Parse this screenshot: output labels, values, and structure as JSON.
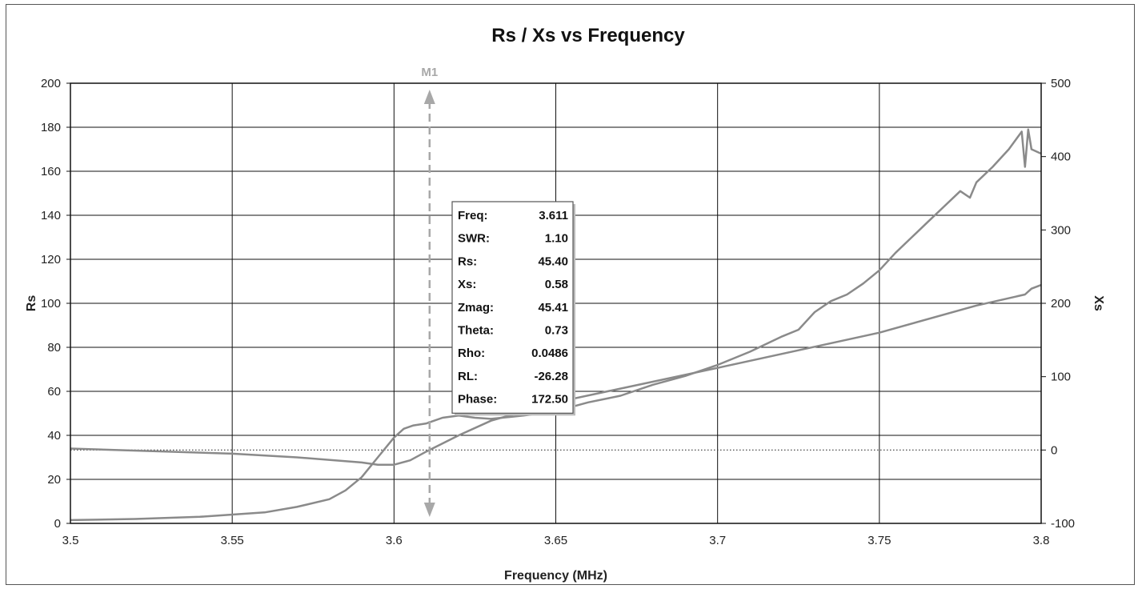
{
  "chart_data": {
    "type": "line",
    "title": "Rs / Xs  vs  Frequency",
    "xlabel": "Frequency (MHz)",
    "ylabel_left": "Rs",
    "ylabel_right": "Xs",
    "xlim": [
      3.5,
      3.8
    ],
    "ylim_left": [
      0,
      200
    ],
    "ylim_right": [
      -100,
      500
    ],
    "x_ticks": [
      "3.5",
      "3.55",
      "3.6",
      "3.65",
      "3.7",
      "3.75",
      "3.8"
    ],
    "y_left_ticks": [
      "0",
      "20",
      "40",
      "60",
      "80",
      "100",
      "120",
      "140",
      "160",
      "180",
      "200"
    ],
    "y_right_ticks": [
      "-100",
      "0",
      "100",
      "200",
      "300",
      "400",
      "500"
    ],
    "grid": true,
    "zero_reference": {
      "axis": "right",
      "value": 0,
      "style": "dotted"
    },
    "series": [
      {
        "axis": "left",
        "color": "#8a8a8a",
        "x": [
          3.5,
          3.52,
          3.54,
          3.56,
          3.57,
          3.58,
          3.585,
          3.59,
          3.595,
          3.6,
          3.603,
          3.606,
          3.61,
          3.615,
          3.62,
          3.625,
          3.63,
          3.64,
          3.65,
          3.66,
          3.67,
          3.68,
          3.69,
          3.7,
          3.71,
          3.72,
          3.725,
          3.73,
          3.735,
          3.74,
          3.745,
          3.75,
          3.755,
          3.76,
          3.765,
          3.77,
          3.775,
          3.778,
          3.78,
          3.785,
          3.79,
          3.794,
          3.795,
          3.796,
          3.797,
          3.8
        ],
        "y": [
          1.5,
          2,
          3,
          5,
          7.5,
          11,
          15,
          21,
          30,
          39,
          43,
          44.5,
          45.4,
          48,
          49,
          48,
          47.5,
          49,
          51,
          55,
          58,
          63,
          67,
          72,
          78,
          85,
          88,
          96,
          101,
          104,
          109,
          115,
          123,
          130,
          137,
          144,
          151,
          148,
          155,
          162,
          170,
          178,
          162,
          179,
          170,
          168
        ]
      },
      {
        "axis": "right",
        "color": "#8a8a8a",
        "x": [
          3.5,
          3.55,
          3.57,
          3.59,
          3.595,
          3.6,
          3.605,
          3.61,
          3.62,
          3.63,
          3.65,
          3.7,
          3.75,
          3.78,
          3.795,
          3.797,
          3.8
        ],
        "y": [
          2,
          -5,
          -10,
          -17,
          -20,
          -20,
          -14,
          -2,
          20,
          40,
          65,
          112,
          160,
          197,
          212,
          220,
          225
        ]
      }
    ],
    "marker": {
      "label": "M1",
      "x": 3.611,
      "info": [
        {
          "label": "Freq:",
          "value": "3.611"
        },
        {
          "label": "SWR:",
          "value": "1.10"
        },
        {
          "label": "Rs:",
          "value": "45.40"
        },
        {
          "label": "Xs:",
          "value": "0.58"
        },
        {
          "label": "Zmag:",
          "value": "45.41"
        },
        {
          "label": "Theta:",
          "value": "0.73"
        },
        {
          "label": "Rho:",
          "value": "0.0486"
        },
        {
          "label": "RL:",
          "value": "-26.28"
        },
        {
          "label": "Phase:",
          "value": "172.50"
        }
      ]
    }
  }
}
